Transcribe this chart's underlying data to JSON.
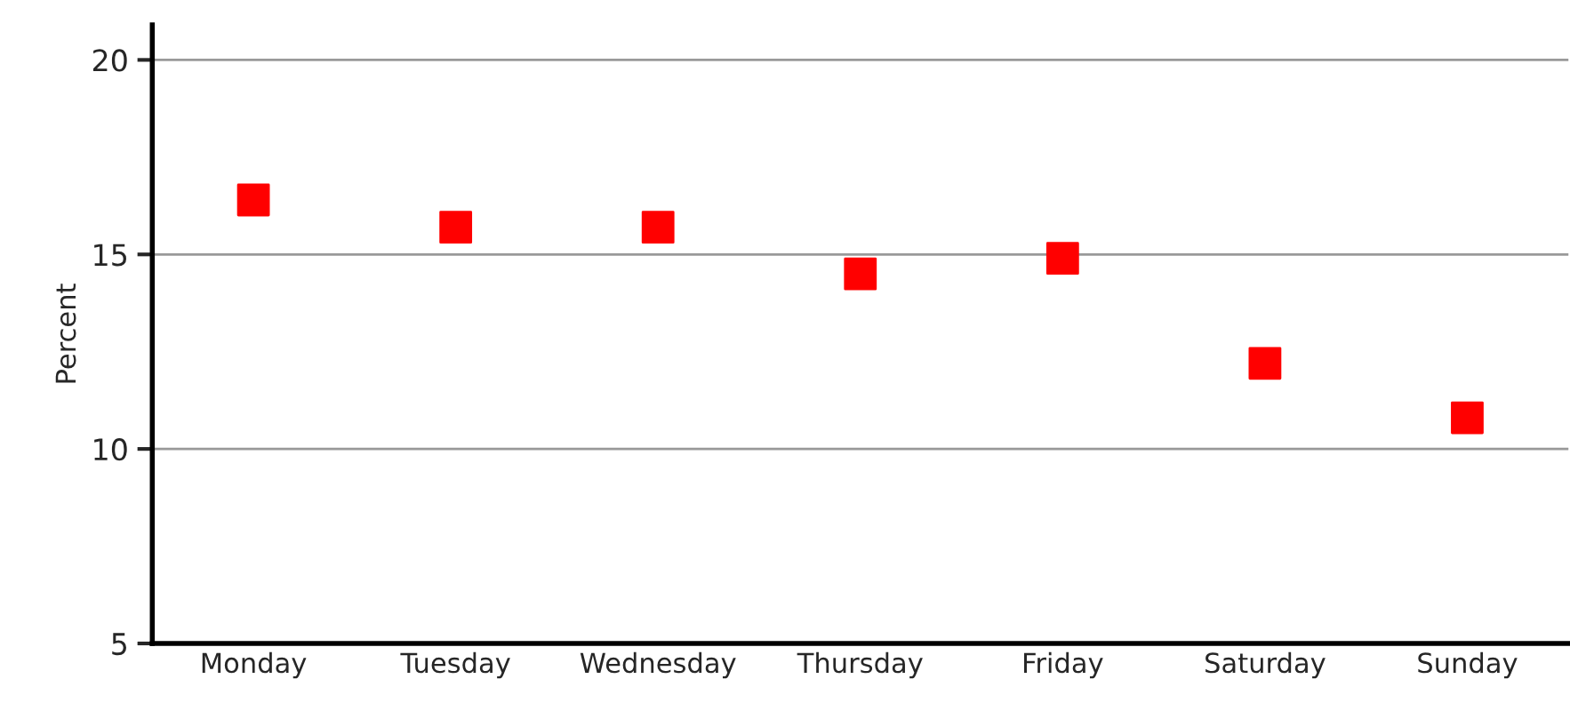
{
  "chart_data": {
    "type": "scatter",
    "ylabel": "Percent",
    "categories": [
      "Monday",
      "Tuesday",
      "Wednesday",
      "Thursday",
      "Friday",
      "Saturday",
      "Sunday"
    ],
    "series": [
      {
        "color": "#ff0000",
        "values": [
          16.4,
          15.7,
          15.7,
          14.5,
          14.9,
          12.2,
          10.8
        ]
      }
    ],
    "ylim": [
      5,
      20.9
    ],
    "yticks": [
      5,
      10,
      15,
      20
    ],
    "grid": "y",
    "marker": "square",
    "legend": false
  }
}
